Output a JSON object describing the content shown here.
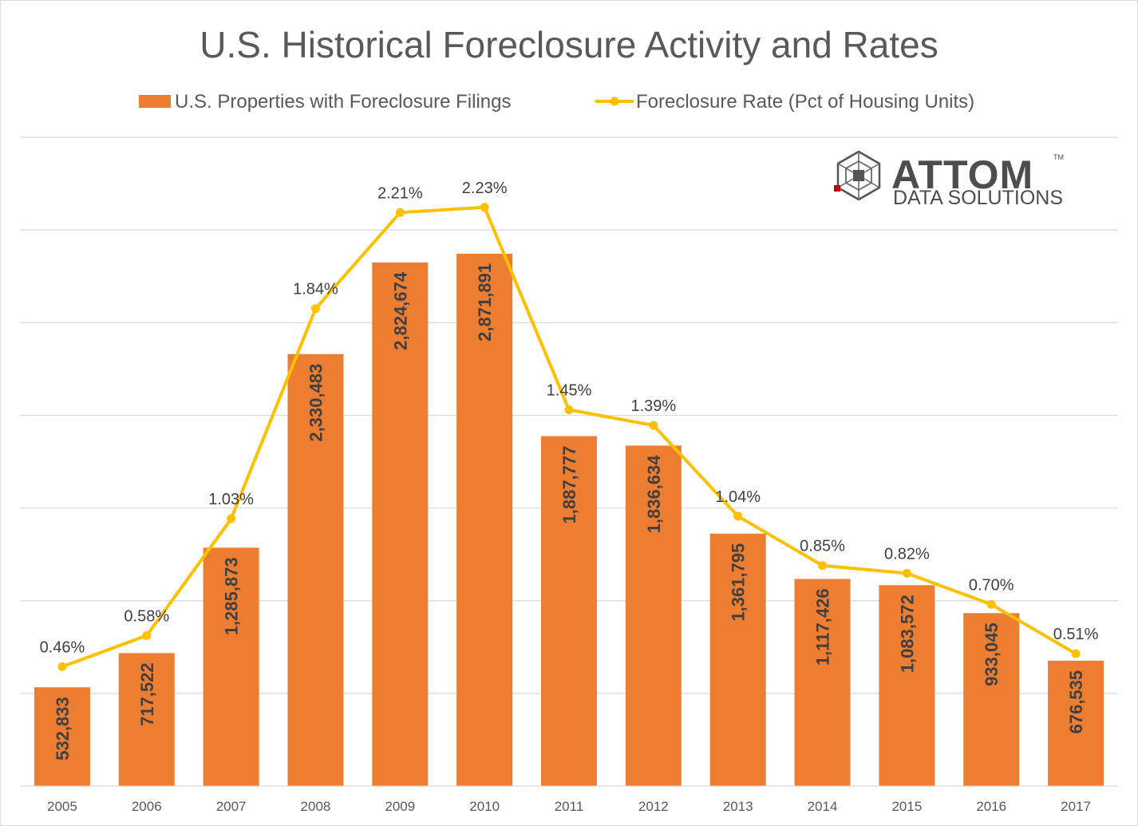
{
  "chart_data": {
    "type": "bar",
    "title": "U.S. Historical Foreclosure Activity and Rates",
    "categories": [
      "2005",
      "2006",
      "2007",
      "2008",
      "2009",
      "2010",
      "2011",
      "2012",
      "2013",
      "2014",
      "2015",
      "2016",
      "2017"
    ],
    "series": [
      {
        "name": "U.S. Properties with Foreclosure Filings",
        "kind": "bar",
        "color": "#ED7D31",
        "values": [
          532833,
          717522,
          1285873,
          2330483,
          2824674,
          2871891,
          1887777,
          1836634,
          1361795,
          1117426,
          1083572,
          933045,
          676535
        ],
        "labels": [
          "532,833",
          "717,522",
          "1,285,873",
          "2,330,483",
          "2,824,674",
          "2,871,891",
          "1,887,777",
          "1,836,634",
          "1,361,795",
          "1,117,426",
          "1,083,572",
          "933,045",
          "676,535"
        ]
      },
      {
        "name": "Foreclosure Rate (Pct of Housing Units)",
        "kind": "line",
        "color": "#FFC000",
        "values": [
          0.46,
          0.58,
          1.03,
          1.84,
          2.21,
          2.23,
          1.45,
          1.39,
          1.04,
          0.85,
          0.82,
          0.7,
          0.51
        ],
        "labels": [
          "0.46%",
          "0.58%",
          "1.03%",
          "1.84%",
          "2.21%",
          "2.23%",
          "1.45%",
          "1.39%",
          "1.04%",
          "0.85%",
          "0.82%",
          "0.70%",
          "0.51%"
        ]
      }
    ],
    "ylim_bars": [
      0,
      3500000
    ],
    "ylim_rate": [
      0,
      2.5
    ],
    "grid": true,
    "legend": "top-center"
  },
  "logo": {
    "name": "ATTOM",
    "subtitle": "DATA SOLUTIONS",
    "tm": "TM"
  },
  "colors": {
    "bar": "#ED7D31",
    "line": "#FFC000",
    "text": "#595959",
    "grid": "#D9D9D9",
    "logo_red": "#C00000"
  }
}
